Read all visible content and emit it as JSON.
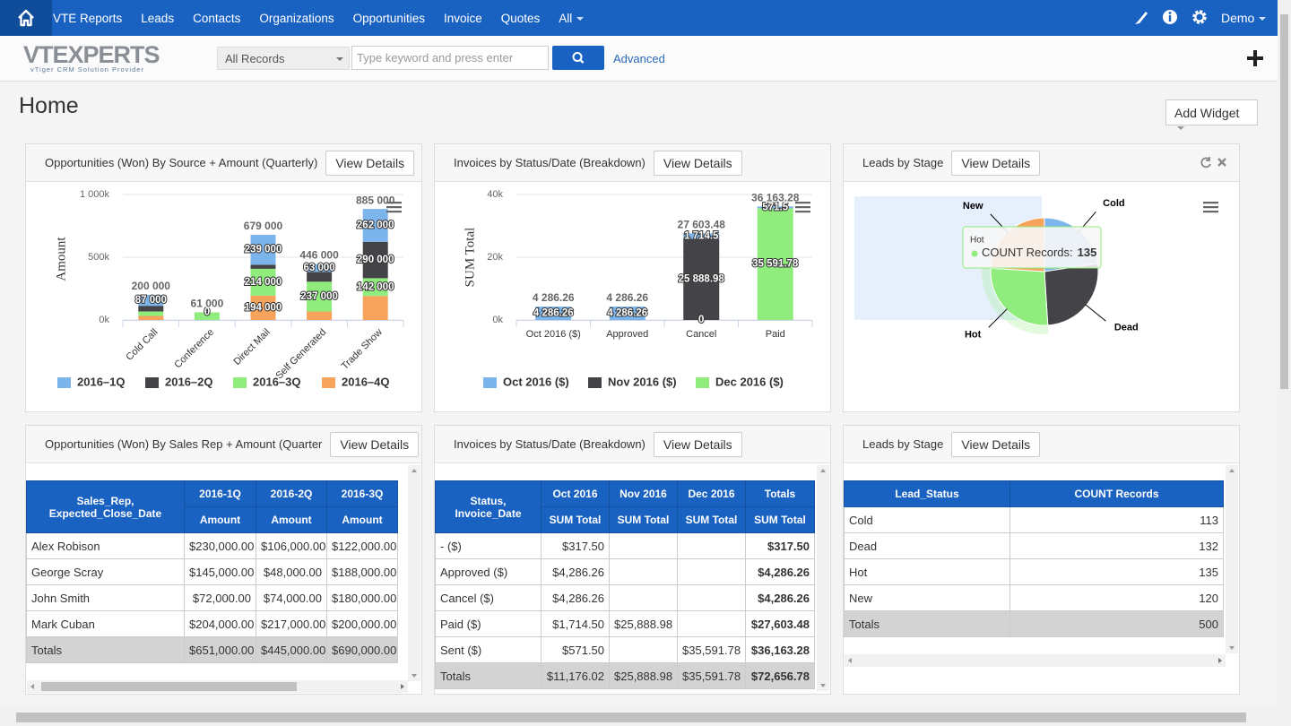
{
  "nav": {
    "items": [
      "VTE Reports",
      "Leads",
      "Contacts",
      "Organizations",
      "Opportunities",
      "Invoice",
      "Quotes",
      "All"
    ],
    "user": "Demo"
  },
  "header": {
    "logo": "VTEXPERTS",
    "tagline": "vTiger CRM Solution Provider",
    "search_scope": "All Records",
    "search_placeholder": "Type keyword and press enter",
    "advanced": "Advanced"
  },
  "page": {
    "title": "Home",
    "add_widget": "Add Widget"
  },
  "widgets": [
    {
      "title": "Opportunities (Won) By Source + Amount (Quarterly)",
      "button": "View Details",
      "chart": {
        "type": "stacked_bar",
        "y_label": "Amount",
        "categories": [
          "Cold Call",
          "Conference",
          "Direct Mail",
          "Self Generated",
          "Trade Show"
        ],
        "series": [
          {
            "name": "2016–1Q",
            "color": "#7cb5ec",
            "values": [
              87000,
              0,
              239000,
              63000,
              262000
            ],
            "value_labels": [
              "87 000",
              null,
              "239 000",
              "63 000",
              "262 000"
            ]
          },
          {
            "name": "2016–2Q",
            "color": "#434348",
            "values": [
              45000,
              0,
              32000,
              78000,
              290000
            ],
            "value_labels": [
              null,
              "0",
              null,
              null,
              "290 000"
            ]
          },
          {
            "name": "2016–3Q",
            "color": "#90ed7d",
            "values": [
              36000,
              61000,
              214000,
              237000,
              142000
            ],
            "value_labels": [
              null,
              null,
              "214 000",
              "237 000",
              "142 000"
            ]
          },
          {
            "name": "2016–4Q",
            "color": "#f7a35c",
            "values": [
              32000,
              0,
              194000,
              68000,
              191000
            ],
            "value_labels": [
              null,
              null,
              "194 000",
              null,
              null
            ]
          }
        ],
        "totals": [
          200000,
          61000,
          679000,
          446000,
          885000
        ],
        "total_labels": [
          "200 000",
          "61 000",
          "679 000",
          "446 000",
          "885 000"
        ],
        "ylim": [
          0,
          1000000
        ],
        "yticks": [
          {
            "value": 0,
            "label": "0k"
          },
          {
            "value": 500000,
            "label": "500k"
          },
          {
            "value": 1000000,
            "label": "1 000k"
          }
        ],
        "grid": true
      }
    },
    {
      "title": "Invoices by Status/Date (Breakdown)",
      "button": "View Details",
      "chart": {
        "type": "stacked_bar",
        "y_label": "SUM Total",
        "categories": [
          "Oct 2016 ($)",
          "Approved",
          "Cancel",
          "Paid"
        ],
        "series": [
          {
            "name": "Oct 2016 ($)",
            "color": "#7cb5ec",
            "values": [
              4286.26,
              4286.26,
              1714.5,
              571.5
            ],
            "value_labels": [
              "4 286.26",
              "4 286.26",
              "1 714.5",
              "571.5"
            ]
          },
          {
            "name": "Nov 2016 ($)",
            "color": "#434348",
            "values": [
              0,
              0,
              25888.98,
              0
            ],
            "value_labels": [
              null,
              null,
              "25 888.98",
              null
            ]
          },
          {
            "name": "Dec 2016 ($)",
            "color": "#90ed7d",
            "values": [
              0,
              0,
              0,
              35591.78
            ],
            "value_labels": [
              null,
              null,
              "0",
              "35 591.78"
            ]
          }
        ],
        "totals": [
          4286.26,
          4286.26,
          27603.48,
          36163.28
        ],
        "total_labels": [
          "4 286.26",
          "4 286.26",
          "27 603.48",
          "36 163.28"
        ],
        "ylim": [
          0,
          40000
        ],
        "yticks": [
          {
            "value": 0,
            "label": "0k"
          },
          {
            "value": 20000,
            "label": "20k"
          },
          {
            "value": 40000,
            "label": "40k"
          }
        ],
        "grid": true
      }
    },
    {
      "title": "Leads by Stage",
      "button": "View Details",
      "chart": {
        "type": "pie",
        "categories": [
          "Cold",
          "Dead",
          "Hot",
          "New"
        ],
        "values": [
          113,
          132,
          135,
          120
        ],
        "colors": [
          "#7cb5ec",
          "#434348",
          "#90ed7d",
          "#f7a35c"
        ],
        "tooltip": {
          "label": "COUNT Records:"
        }
      }
    },
    {
      "title": "Opportunities (Won) By Sales Rep + Amount (Quarter",
      "button": "View Details",
      "table": {
        "row_header": "Sales_Rep, Expected_Close_Date",
        "columns": [
          "2016-1Q",
          "2016-2Q",
          "2016-3Q"
        ],
        "subheader": [
          "Amount",
          "Amount",
          "Amount"
        ],
        "rows": [
          [
            "Alex Robison",
            "$230,000.00",
            "$106,000.00",
            "$122,000.00"
          ],
          [
            "George Scray",
            "$145,000.00",
            "$48,000.00",
            "$188,000.00"
          ],
          [
            "John Smith",
            "$72,000.00",
            "$74,000.00",
            "$180,000.00"
          ],
          [
            "Mark Cuban",
            "$204,000.00",
            "$217,000.00",
            "$200,000.00"
          ]
        ],
        "totals": [
          "Totals",
          "$651,000.00",
          "$445,000.00",
          "$690,000.00"
        ]
      }
    },
    {
      "title": "Invoices by Status/Date (Breakdown)",
      "button": "View Details",
      "table": {
        "row_header": "Status, Invoice_Date",
        "columns": [
          "Oct 2016",
          "Nov 2016",
          "Dec 2016",
          "Totals"
        ],
        "subheader": [
          "SUM Total",
          "SUM Total",
          "SUM Total",
          "SUM Total"
        ],
        "rows": [
          [
            "- ($)",
            "$317.50",
            null,
            null,
            "$317.50"
          ],
          [
            "Approved ($)",
            "$4,286.26",
            null,
            null,
            "$4,286.26"
          ],
          [
            "Cancel ($)",
            "$4,286.26",
            null,
            null,
            "$4,286.26"
          ],
          [
            "Paid ($)",
            "$1,714.50",
            "$25,888.98",
            null,
            "$27,603.48"
          ],
          [
            "Sent ($)",
            "$571.50",
            null,
            "$35,591.78",
            "$36,163.28"
          ]
        ],
        "totals": [
          "Totals",
          "$11,176.02",
          "$25,888.98",
          "$35,591.78",
          "$72,656.78"
        ]
      }
    },
    {
      "title": "Leads by Stage",
      "button": "View Details",
      "table": {
        "columns": [
          "Lead_Status",
          "COUNT Records"
        ],
        "rows": [
          [
            "Cold",
            113
          ],
          [
            "Dead",
            132
          ],
          [
            "Hot",
            135
          ],
          [
            "New",
            120
          ]
        ],
        "totals": [
          "Totals",
          500
        ]
      }
    }
  ]
}
